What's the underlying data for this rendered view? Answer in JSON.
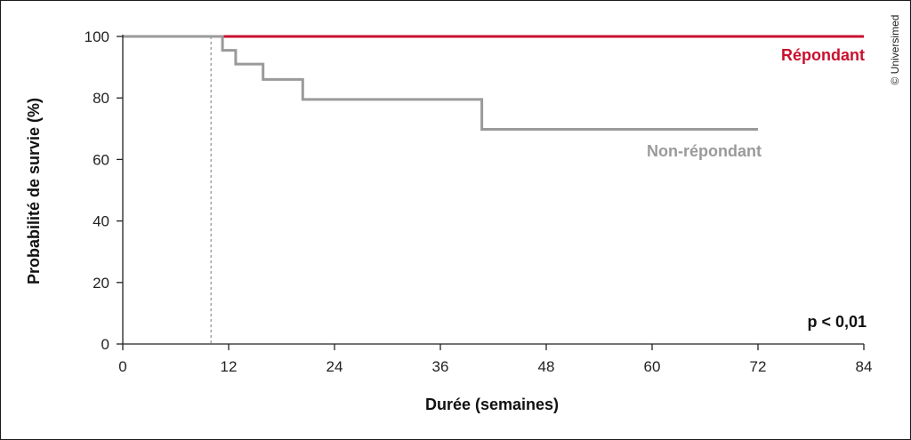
{
  "chart_data": {
    "type": "line",
    "step": true,
    "xlabel": "Durée (semaines)",
    "ylabel": "Probabilité de survie (%)",
    "xlim": [
      0,
      84
    ],
    "ylim": [
      0,
      100
    ],
    "xticks": [
      0,
      12,
      24,
      36,
      48,
      60,
      72,
      84
    ],
    "yticks": [
      0,
      20,
      40,
      60,
      80,
      100
    ],
    "grid": false,
    "reference_line_x": 10,
    "series": [
      {
        "name": "Répondant",
        "color": "#c8102e",
        "x": [
          0,
          84
        ],
        "y": [
          100,
          100
        ]
      },
      {
        "name": "Non-répondant",
        "color": "#9a9a9a",
        "x": [
          0,
          11.3,
          11.3,
          12.8,
          12.8,
          15.9,
          15.9,
          20.4,
          20.4,
          40.7,
          40.7,
          72
        ],
        "y": [
          100,
          100,
          95.5,
          95.5,
          91,
          91,
          86,
          86,
          79.5,
          79.5,
          69.8,
          69.8
        ]
      }
    ],
    "annotation": "p < 0,01",
    "credit": "© Universimed"
  }
}
